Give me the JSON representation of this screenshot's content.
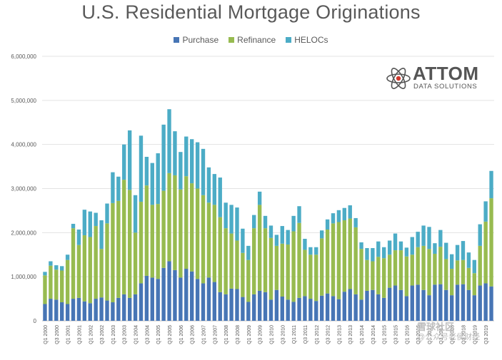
{
  "chart_data": {
    "type": "bar",
    "stacked": true,
    "title": "U.S. Residential Mortgage Originations",
    "xlabel": "",
    "ylabel": "",
    "ylim": [
      0,
      6000000
    ],
    "yticks": [
      0,
      1000000,
      2000000,
      3000000,
      4000000,
      5000000,
      6000000
    ],
    "ytick_labels": [
      "0",
      "1,000,000",
      "2,000,000",
      "3,000,000",
      "4,000,000",
      "5,000,000",
      "6,000,000"
    ],
    "grid": true,
    "legend_position": "top-center",
    "colors": {
      "Purchase": "#4775b5",
      "Refinance": "#97bb50",
      "HELOCs": "#4cacc6"
    },
    "categories": [
      "Q1 2000",
      "Q2 2000",
      "Q3 2000",
      "Q4 2000",
      "Q1 2001",
      "Q2 2001",
      "Q3 2001",
      "Q4 2001",
      "Q1 2002",
      "Q2 2002",
      "Q3 2002",
      "Q4 2002",
      "Q1 2003",
      "Q2 2003",
      "Q3 2003",
      "Q4 2003",
      "Q1 2004",
      "Q2 2004",
      "Q3 2004",
      "Q4 2004",
      "Q1 2005",
      "Q2 2005",
      "Q3 2005",
      "Q4 2005",
      "Q1 2006",
      "Q2 2006",
      "Q3 2006",
      "Q4 2006",
      "Q1 2007",
      "Q2 2007",
      "Q3 2007",
      "Q4 2007",
      "Q1 2008",
      "Q2 2008",
      "Q3 2008",
      "Q4 2008",
      "Q1 2009",
      "Q2 2009",
      "Q3 2009",
      "Q4 2009",
      "Q1 2010",
      "Q2 2010",
      "Q3 2010",
      "Q4 2010",
      "Q1 2011",
      "Q2 2011",
      "Q3 2011",
      "Q4 2011",
      "Q1 2012",
      "Q2 2012",
      "Q3 2012",
      "Q4 2012",
      "Q1 2013",
      "Q2 2013",
      "Q3 2013",
      "Q4 2013",
      "Q1 2014",
      "Q2 2014",
      "Q3 2014",
      "Q4 2014",
      "Q1 2015",
      "Q2 2015",
      "Q3 2015",
      "Q4 2015",
      "Q1 2016",
      "Q2 2016",
      "Q3 2016",
      "Q4 2016",
      "Q1 2017",
      "Q2 2017",
      "Q3 2017",
      "Q4 2017",
      "Q1 2018",
      "Q2 2018",
      "Q3 2018",
      "Q4 2018",
      "Q1 2019",
      "Q2 2019",
      "Q3 2019",
      "Q4 2019"
    ],
    "tick_labels": [
      "Q1 2000",
      "Q3 2000",
      "Q1 2001",
      "Q3 2001",
      "Q1 2002",
      "Q3 2002",
      "Q1 2003",
      "Q3 2003",
      "Q1 2004",
      "Q3 2004",
      "Q1 2005",
      "Q3 2005",
      "Q1 2006",
      "Q3 2006",
      "Q1 2007",
      "Q3 2007",
      "Q1 2008",
      "Q3 2008",
      "Q1 2009",
      "Q3 2009",
      "Q1 2010",
      "Q3 2010",
      "Q1 2011",
      "Q3 2011",
      "Q1 2012",
      "Q3 2012",
      "Q1 2013",
      "Q3 2013",
      "Q1 2014",
      "Q3 2014",
      "Q1 2015",
      "Q3 2015",
      "Q1 2016",
      "Q3 2016",
      "Q1 2017",
      "Q3 2017",
      "Q1 2018",
      "Q3 2018",
      "Q1 2019",
      "Q3 2019"
    ],
    "series": [
      {
        "name": "Purchase",
        "values": [
          380000,
          500000,
          480000,
          420000,
          380000,
          500000,
          520000,
          440000,
          400000,
          500000,
          530000,
          460000,
          420000,
          520000,
          600000,
          520000,
          600000,
          850000,
          1020000,
          980000,
          950000,
          1200000,
          1350000,
          1150000,
          980000,
          1180000,
          1120000,
          950000,
          850000,
          980000,
          880000,
          650000,
          600000,
          730000,
          720000,
          540000,
          430000,
          600000,
          680000,
          650000,
          480000,
          700000,
          550000,
          480000,
          430000,
          520000,
          560000,
          500000,
          450000,
          570000,
          620000,
          560000,
          490000,
          660000,
          720000,
          600000,
          480000,
          680000,
          700000,
          600000,
          520000,
          750000,
          800000,
          700000,
          560000,
          800000,
          820000,
          700000,
          580000,
          820000,
          830000,
          700000,
          580000,
          820000,
          830000,
          700000,
          580000,
          800000,
          850000,
          780000
        ]
      },
      {
        "name": "Refinance",
        "values": [
          650000,
          750000,
          680000,
          720000,
          1000000,
          1600000,
          1200000,
          1500000,
          1500000,
          1650000,
          1100000,
          1750000,
          2250000,
          2200000,
          2600000,
          2450000,
          1400000,
          1850000,
          2050000,
          1650000,
          1700000,
          1750000,
          2000000,
          2150000,
          2000000,
          2100000,
          2000000,
          2050000,
          2000000,
          1700000,
          1750000,
          1700000,
          1500000,
          1250000,
          1100000,
          1000000,
          950000,
          1500000,
          1950000,
          1450000,
          1400000,
          1000000,
          1200000,
          1250000,
          1600000,
          1700000,
          1050000,
          1000000,
          1050000,
          1300000,
          1450000,
          1650000,
          1750000,
          1620000,
          1600000,
          1520000,
          1150000,
          700000,
          650000,
          850000,
          900000,
          750000,
          800000,
          900000,
          900000,
          700000,
          850000,
          1000000,
          1050000,
          700000,
          850000,
          700000,
          600000,
          550000,
          550000,
          500000,
          500000,
          900000,
          1400000,
          2000000
        ]
      },
      {
        "name": "HELOCs",
        "values": [
          80000,
          100000,
          100000,
          100000,
          120000,
          100000,
          350000,
          580000,
          580000,
          300000,
          650000,
          450000,
          700000,
          550000,
          800000,
          1350000,
          850000,
          1500000,
          650000,
          950000,
          1150000,
          1500000,
          1450000,
          1000000,
          850000,
          900000,
          1000000,
          1050000,
          1050000,
          800000,
          700000,
          900000,
          580000,
          650000,
          750000,
          550000,
          320000,
          300000,
          300000,
          280000,
          280000,
          250000,
          400000,
          330000,
          350000,
          380000,
          250000,
          170000,
          170000,
          180000,
          230000,
          230000,
          270000,
          280000,
          300000,
          210000,
          150000,
          270000,
          300000,
          350000,
          250000,
          320000,
          380000,
          200000,
          200000,
          400000,
          350000,
          460000,
          500000,
          240000,
          380000,
          370000,
          330000,
          350000,
          430000,
          350000,
          300000,
          490000,
          460000,
          620000
        ]
      }
    ]
  },
  "legend": {
    "items": [
      {
        "label": "Purchase",
        "color": "#4775b5"
      },
      {
        "label": "Refinance",
        "color": "#97bb50"
      },
      {
        "label": "HELOCs",
        "color": "#4cacc6"
      }
    ]
  },
  "logo": {
    "name": "ATTOM",
    "subtitle": "DATA SOLUTIONS",
    "icon": "atom-icon"
  },
  "watermark": {
    "line1": "雪球社区",
    "line2": "@公众号老侯财经"
  }
}
